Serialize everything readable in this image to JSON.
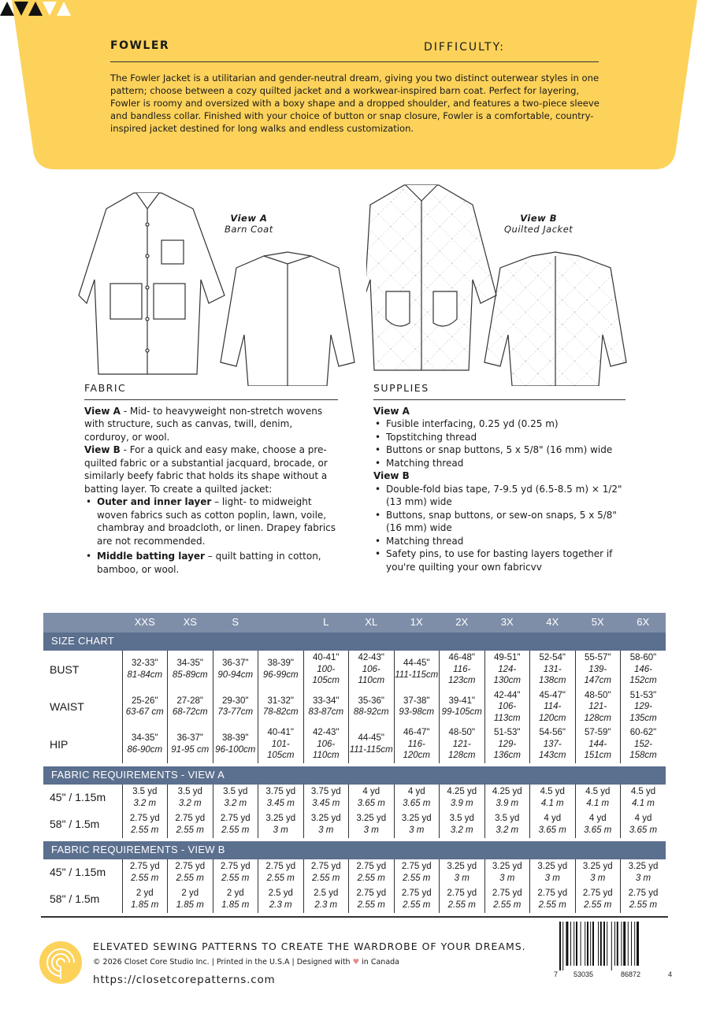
{
  "header": {
    "title": "FOWLER",
    "difficulty_label": "DIFFICULTY:",
    "difficulty_level": 3,
    "difficulty_max": 5,
    "accent_color": "#FCD25A",
    "description": "The Fowler Jacket is a utilitarian and gender-neutral dream, giving you two distinct outerwear styles in one pattern; choose between a cozy quilted jacket and a workwear-inspired barn coat. Perfect for layering, Fowler is roomy and oversized with a boxy shape and a dropped shoulder, and features a two-piece sleeve and bandless collar. Finished with your choice of button or snap closure, Fowler is a comfortable, country-inspired jacket destined for long walks and endless customization."
  },
  "views": [
    {
      "name": "View A",
      "subtitle": "Barn Coat"
    },
    {
      "name": "View B",
      "subtitle": "Quilted Jacket"
    }
  ],
  "fabric": {
    "heading": "FABRIC",
    "view_a_label": "View A",
    "view_a_text": " - Mid- to heavyweight non-stretch wovens with structure, such as canvas, twill, denim, corduroy, or wool.",
    "view_b_label": "View B",
    "view_b_text": " - For a quick and easy make, choose a pre-quilted fabric or a substantial jacquard, brocade, or similarly beefy fabric that holds its shape without a batting layer. To create a quilted jacket:",
    "bullets": [
      {
        "bold": "Outer and inner layer",
        "text": " – light- to midweight woven fabrics such as cotton poplin, lawn, voile, chambray and broadcloth, or linen. Drapey fabrics are not recommended."
      },
      {
        "bold": "Middle batting layer",
        "text": " – quilt batting in cotton, bamboo, or wool."
      }
    ]
  },
  "supplies": {
    "heading": "SUPPLIES",
    "view_a_label": "View A",
    "view_a": [
      "Fusible interfacing, 0.25 yd (0.25 m)",
      "Topstitching thread",
      "Buttons or snap buttons, 5 x 5/8\" (16 mm) wide",
      "Matching thread"
    ],
    "view_b_label": "View B",
    "view_b": [
      "Double-fold bias tape, 7-9.5 yd (6.5-8.5 m) × 1/2\" (13 mm) wide",
      "Buttons, snap buttons, or sew-on snaps, 5 x 5/8\" (16 mm) wide",
      "Matching thread",
      "Safety pins, to use for basting layers together if you're quilting your own fabricvv"
    ]
  },
  "size_chart": {
    "sizes": [
      "XXS",
      "XS",
      "S",
      "",
      "L",
      "XL",
      "1X",
      "2X",
      "3X",
      "4X",
      "5X",
      "6X"
    ],
    "title": "SIZE CHART",
    "rows": [
      {
        "label": "BUST",
        "in": [
          "32-33\"",
          "34-35\"",
          "36-37\"",
          "38-39\"",
          "40-41\"",
          "42-43\"",
          "44-45\"",
          "46-48\"",
          "49-51\"",
          "52-54\"",
          "55-57\"",
          "58-60\""
        ],
        "cm": [
          "81-84cm",
          "85-89cm",
          "90-94cm",
          "96-99cm",
          "100-105cm",
          "106-110cm",
          "111-115cm",
          "116-123cm",
          "124-130cm",
          "131-138cm",
          "139-147cm",
          "146-152cm"
        ]
      },
      {
        "label": "WAIST",
        "in": [
          "25-26\"",
          "27-28\"",
          "29-30\"",
          "31-32\"",
          "33-34\"",
          "35-36\"",
          "37-38\"",
          "39-41\"",
          "42-44\"",
          "45-47\"",
          "48-50\"",
          "51-53\""
        ],
        "cm": [
          "63-67 cm",
          "68-72cm",
          "73-77cm",
          "78-82cm",
          "83-87cm",
          "88-92cm",
          "93-98cm",
          "99-105cm",
          "106-113cm",
          "114-120cm",
          "121-128cm",
          "129-135cm"
        ]
      },
      {
        "label": "HIP",
        "in": [
          "34-35\"",
          "36-37\"",
          "38-39\"",
          "40-41\"",
          "42-43\"",
          "44-45\"",
          "46-47\"",
          "48-50\"",
          "51-53\"",
          "54-56\"",
          "57-59\"",
          "60-62\""
        ],
        "cm": [
          "86-90cm",
          "91-95 cm",
          "96-100cm",
          "101-105cm",
          "106-110cm",
          "111-115cm",
          "116-120cm",
          "121-128cm",
          "129-136cm",
          "137-143cm",
          "144-151cm",
          "152-158cm"
        ]
      }
    ]
  },
  "fabric_a": {
    "title": "FABRIC REQUIREMENTS - VIEW A",
    "rows": [
      {
        "label": "45\" / 1.15m",
        "yd": [
          "3.5 yd",
          "3.5 yd",
          "3.5 yd",
          "3.75 yd",
          "3.75 yd",
          "4 yd",
          "4 yd",
          "4.25 yd",
          "4.25 yd",
          "4.5 yd",
          "4.5 yd",
          "4.5 yd"
        ],
        "m": [
          "3.2 m",
          "3.2 m",
          "3.2 m",
          "3.45 m",
          "3.45 m",
          "3.65 m",
          "3.65 m",
          "3.9 m",
          "3.9 m",
          "4.1 m",
          "4.1 m",
          "4.1 m"
        ]
      },
      {
        "label": "58\" / 1.5m",
        "yd": [
          "2.75 yd",
          "2.75 yd",
          "2.75 yd",
          "3.25 yd",
          "3.25 yd",
          "3.25 yd",
          "3.25 yd",
          "3.5 yd",
          "3.5 yd",
          "4 yd",
          "4 yd",
          "4 yd"
        ],
        "m": [
          "2.55 m",
          "2.55 m",
          "2.55 m",
          "3 m",
          "3 m",
          "3 m",
          "3 m",
          "3.2 m",
          "3.2 m",
          "3.65 m",
          "3.65 m",
          "3.65 m"
        ]
      }
    ]
  },
  "fabric_b": {
    "title": "FABRIC REQUIREMENTS - VIEW B",
    "rows": [
      {
        "label": "45\" / 1.15m",
        "yd": [
          "2.75 yd",
          "2.75 yd",
          "2.75 yd",
          "2.75 yd",
          "2.75 yd",
          "2.75 yd",
          "2.75 yd",
          "3.25 yd",
          "3.25 yd",
          "3.25 yd",
          "3.25 yd",
          "3.25 yd"
        ],
        "m": [
          "2.55 m",
          "2.55 m",
          "2.55 m",
          "2.55 m",
          "2.55 m",
          "2.55 m",
          "2.55 m",
          "3 m",
          "3 m",
          "3 m",
          "3 m",
          "3 m"
        ]
      },
      {
        "label": "58\" / 1.5m",
        "yd": [
          "2 yd",
          "2 yd",
          "2 yd",
          "2.5 yd",
          "2.5 yd",
          "2.75 yd",
          "2.75 yd",
          "2.75 yd",
          "2.75 yd",
          "2.75 yd",
          "2.75 yd",
          "2.75 yd"
        ],
        "m": [
          "1.85 m",
          "1.85 m",
          "1.85 m",
          "2.3 m",
          "2.3 m",
          "2.55 m",
          "2.55 m",
          "2.55 m",
          "2.55 m",
          "2.55 m",
          "2.55 m",
          "2.55 m"
        ]
      }
    ]
  },
  "footer": {
    "tagline": "ELEVATED SEWING PATTERNS TO CREATE THE WARDROBE OF YOUR DREAMS.",
    "copyright_pre": "© 2026 Closet Core Studio Inc. | Printed in the U.S.A | Designed with ",
    "heart": "♥",
    "copyright_post": " in Canada",
    "url": "https://closetcorepatterns.com",
    "barcode_digits": [
      "7",
      "53035",
      "86872",
      "4"
    ]
  }
}
